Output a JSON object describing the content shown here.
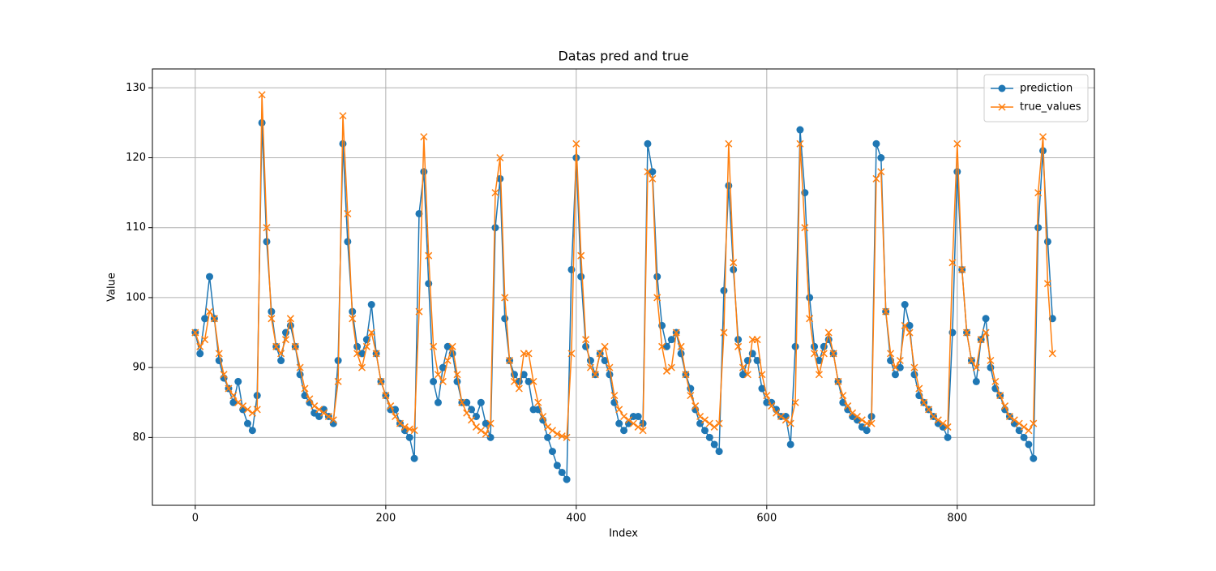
{
  "chart_data": {
    "type": "line",
    "title": "Datas pred and true",
    "x_label": "Index",
    "y_label": "Value",
    "x": [
      0,
      5,
      10,
      15,
      20,
      25,
      30,
      35,
      40,
      45,
      50,
      55,
      60,
      65,
      70,
      75,
      80,
      85,
      90,
      95,
      100,
      105,
      110,
      115,
      120,
      125,
      130,
      135,
      140,
      145,
      150,
      155,
      160,
      165,
      170,
      175,
      180,
      185,
      190,
      195,
      200,
      205,
      210,
      215,
      220,
      225,
      230,
      235,
      240,
      245,
      250,
      255,
      260,
      265,
      270,
      275,
      280,
      285,
      290,
      295,
      300,
      305,
      310,
      315,
      320,
      325,
      330,
      335,
      340,
      345,
      350,
      355,
      360,
      365,
      370,
      375,
      380,
      385,
      390,
      395,
      400,
      405,
      410,
      415,
      420,
      425,
      430,
      435,
      440,
      445,
      450,
      455,
      460,
      465,
      470,
      475,
      480,
      485,
      490,
      495,
      500,
      505,
      510,
      515,
      520,
      525,
      530,
      535,
      540,
      545,
      550,
      555,
      560,
      565,
      570,
      575,
      580,
      585,
      590,
      595,
      600,
      605,
      610,
      615,
      620,
      625,
      630,
      635,
      640,
      645,
      650,
      655,
      660,
      665,
      670,
      675,
      680,
      685,
      690,
      695,
      700,
      705,
      710,
      715,
      720,
      725,
      730,
      735,
      740,
      745,
      750,
      755,
      760,
      765,
      770,
      775,
      780,
      785,
      790,
      795,
      800,
      805,
      810,
      815,
      820,
      825,
      830,
      835,
      840,
      845,
      850,
      855,
      860,
      865,
      870,
      875,
      880,
      885,
      890,
      895,
      900
    ],
    "series": [
      {
        "name": "prediction",
        "color": "#1f77b4",
        "marker": "o",
        "values": [
          95,
          92,
          97,
          103,
          97,
          91,
          88.5,
          87,
          85,
          88,
          84,
          82,
          81,
          86,
          125,
          108,
          98,
          93,
          91,
          95,
          96,
          93,
          89,
          86,
          85,
          83.5,
          83,
          84,
          83,
          82,
          91,
          122,
          108,
          98,
          93,
          92,
          94,
          99,
          92,
          88,
          86,
          84,
          84,
          82,
          81,
          80,
          77,
          112,
          118,
          102,
          88,
          85,
          90,
          93,
          92,
          88,
          85,
          85,
          84,
          83,
          85,
          82,
          80,
          110,
          117,
          97,
          91,
          89,
          88,
          89,
          88,
          84,
          84,
          82.5,
          80,
          78,
          76,
          75,
          74,
          104,
          120,
          103,
          93,
          91,
          89,
          92,
          91,
          89,
          85,
          82,
          81,
          82,
          83,
          83,
          82,
          122,
          118,
          103,
          96,
          93,
          94,
          95,
          92,
          89,
          87,
          84,
          82,
          81,
          80,
          79,
          78,
          101,
          116,
          104,
          94,
          89,
          91,
          92,
          91,
          87,
          85,
          85,
          84,
          83,
          83,
          79,
          93,
          124,
          115,
          100,
          93,
          91,
          93,
          94,
          92,
          88,
          85,
          84,
          83,
          82.5,
          81.5,
          81,
          83,
          122,
          120,
          98,
          91,
          89,
          90,
          99,
          96,
          89,
          86,
          85,
          84,
          83,
          82,
          81.5,
          80,
          95,
          118,
          104,
          95,
          91,
          88,
          94,
          97,
          90,
          87,
          86,
          84,
          83,
          82,
          81,
          80,
          79,
          77,
          110,
          121,
          108,
          97
        ]
      },
      {
        "name": "true_values",
        "color": "#ff7f0e",
        "marker": "x",
        "values": [
          95,
          93,
          94,
          98,
          97,
          92,
          89,
          87,
          86,
          85,
          84.5,
          84,
          83.5,
          84,
          129,
          110,
          97,
          93,
          92,
          94,
          97,
          93,
          90,
          87,
          85.5,
          84.5,
          84,
          83.5,
          83,
          82.5,
          88,
          126,
          112,
          97,
          92,
          90,
          93,
          95,
          92,
          88,
          86,
          84.5,
          83,
          82,
          81.5,
          81.2,
          81,
          98,
          123,
          106,
          93,
          89,
          88,
          91,
          93,
          89,
          85,
          83.5,
          82.5,
          81.5,
          81,
          80.5,
          82,
          115,
          120,
          100,
          91,
          88,
          87,
          92,
          92,
          88,
          85,
          83,
          81.5,
          81,
          80.5,
          80.2,
          80,
          92,
          122,
          106,
          94,
          90,
          89,
          92,
          93,
          90,
          86,
          84,
          83,
          82.5,
          82,
          81.5,
          81,
          118,
          117,
          100,
          93,
          89.5,
          90,
          95,
          93,
          89,
          86,
          84.5,
          83,
          82.5,
          82,
          81.5,
          82,
          95,
          122,
          105,
          93,
          90,
          89,
          94,
          94,
          89,
          86,
          84.5,
          83.5,
          83,
          82.5,
          82,
          85,
          122,
          110,
          97,
          92,
          89,
          92,
          95,
          92,
          88,
          86,
          84.5,
          83.5,
          83,
          82.5,
          82,
          82,
          117,
          118,
          98,
          92,
          90,
          91,
          96,
          95,
          90,
          87,
          85,
          84,
          83,
          82.5,
          82,
          81.5,
          105,
          122,
          104,
          95,
          91,
          90,
          94,
          95,
          91,
          88,
          86,
          84.5,
          83,
          82.5,
          82,
          81.5,
          81,
          82,
          115,
          123,
          102,
          92
        ]
      }
    ],
    "xlim": [
      -45,
      944
    ],
    "ylim": [
      70.3,
      132.7
    ],
    "xticks": [
      0,
      200,
      400,
      600,
      800
    ],
    "yticks": [
      80,
      90,
      100,
      110,
      120,
      130
    ],
    "grid": true,
    "legend": "upper right"
  }
}
